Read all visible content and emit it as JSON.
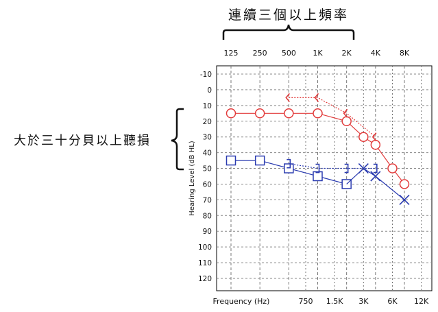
{
  "annotations": {
    "top_label": "連續三個以上頻率",
    "left_label": "大於三十分貝以上聽損"
  },
  "chart_data": {
    "type": "scatter",
    "title": "",
    "ylabel": "Hearing Level (dB HL)",
    "xlabel": "Frequency (Hz)",
    "x_positions": [
      125,
      250,
      500,
      750,
      1000,
      1500,
      2000,
      3000,
      4000,
      6000,
      8000,
      12000
    ],
    "top_tick_labels": [
      {
        "x": 125,
        "label": "125"
      },
      {
        "x": 250,
        "label": "250"
      },
      {
        "x": 500,
        "label": "500"
      },
      {
        "x": 1000,
        "label": "1K"
      },
      {
        "x": 2000,
        "label": "2K"
      },
      {
        "x": 4000,
        "label": "4K"
      },
      {
        "x": 8000,
        "label": "8K"
      }
    ],
    "bottom_tick_labels": [
      {
        "x": 750,
        "label": "750"
      },
      {
        "x": 1500,
        "label": "1.5K"
      },
      {
        "x": 3000,
        "label": "3K"
      },
      {
        "x": 6000,
        "label": "6K"
      },
      {
        "x": 12000,
        "label": "12K"
      }
    ],
    "y_ticks": [
      -10,
      0,
      10,
      20,
      30,
      40,
      50,
      60,
      70,
      80,
      90,
      100,
      110,
      120
    ],
    "ylim": [
      -20,
      130
    ],
    "y_inverted": true,
    "series": [
      {
        "key": "right_ac",
        "marker": "circle",
        "color": "#e23b3b",
        "line": "solid",
        "points": [
          [
            125,
            15
          ],
          [
            250,
            15
          ],
          [
            500,
            15
          ],
          [
            1000,
            15
          ],
          [
            2000,
            20
          ],
          [
            3000,
            30
          ],
          [
            4000,
            35
          ],
          [
            6000,
            50
          ],
          [
            8000,
            60
          ]
        ]
      },
      {
        "key": "right_bc",
        "marker": "lt-bracket",
        "color": "#e23b3b",
        "line": "dotted",
        "points": [
          [
            500,
            5
          ],
          [
            1000,
            5
          ],
          [
            2000,
            15
          ],
          [
            4000,
            30
          ]
        ]
      },
      {
        "key": "left_ac",
        "marker": "square",
        "color": "#2a3bb0",
        "line": "solid",
        "points": [
          [
            125,
            45
          ],
          [
            250,
            45
          ],
          [
            500,
            50
          ],
          [
            1000,
            55
          ],
          [
            2000,
            60
          ]
        ]
      },
      {
        "key": "left_ac_x",
        "marker": "x",
        "color": "#2a3bb0",
        "line": "solid",
        "points": [
          [
            2000,
            60
          ],
          [
            3000,
            50
          ],
          [
            4000,
            55
          ],
          [
            8000,
            70
          ]
        ]
      },
      {
        "key": "left_bc",
        "marker": "rt-bracket",
        "color": "#2a3bb0",
        "line": "dotted",
        "points": [
          [
            500,
            47
          ],
          [
            1000,
            50
          ],
          [
            2000,
            50
          ],
          [
            4000,
            50
          ]
        ]
      }
    ]
  }
}
